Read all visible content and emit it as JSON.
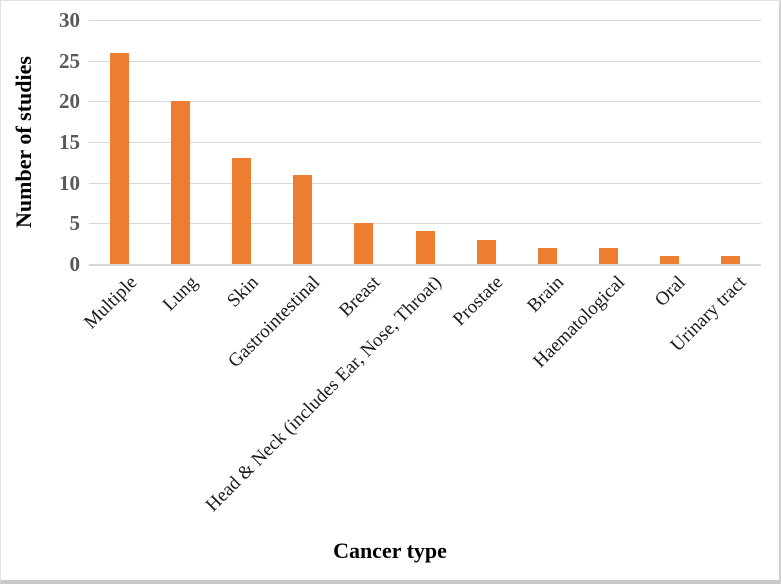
{
  "chart_data": {
    "type": "bar",
    "title": "",
    "xlabel": "Cancer type",
    "ylabel": "Number of studies",
    "categories": [
      "Multiple",
      "Lung",
      "Skin",
      "Gastrointestinal",
      "Breast",
      "Head & Neck (includes Ear, Nose, Throat)",
      "Prostate",
      "Brain",
      "Haematological",
      "Oral",
      "Urinary tract"
    ],
    "values": [
      26,
      20,
      13,
      11,
      5,
      4,
      3,
      2,
      2,
      1,
      1
    ],
    "ylim": [
      0,
      30
    ],
    "yticks": [
      0,
      5,
      10,
      15,
      20,
      25,
      30
    ],
    "legend": "none",
    "grid": "horizontal",
    "bar_color": "#ED7D31",
    "gridline_color": "#D9D9D9",
    "axis_line_color": "#D9D9D9",
    "tick_label_color": "#595959",
    "category_label_color": "#1A1A1A"
  }
}
